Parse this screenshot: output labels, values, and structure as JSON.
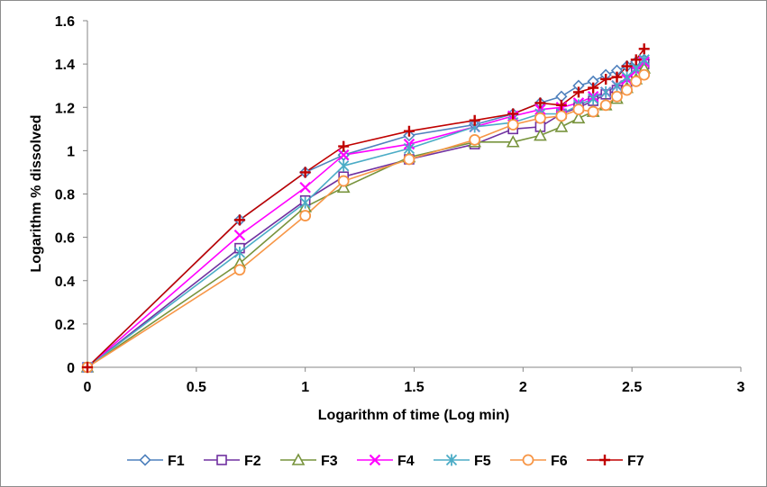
{
  "chart_data": {
    "type": "line",
    "title": "",
    "xlabel": "Logarithm of time (Log min)",
    "ylabel": "Logarithm % dissolved",
    "xlim": [
      0,
      3
    ],
    "ylim": [
      0,
      1.6
    ],
    "x_ticks": [
      0,
      0.5,
      1,
      1.5,
      2,
      2.5,
      3
    ],
    "x_tick_labels": [
      "0",
      "0.5",
      "1",
      "1.5",
      "2",
      "2.5",
      "3"
    ],
    "y_ticks": [
      0,
      0.2,
      0.4,
      0.6,
      0.8,
      1.0,
      1.2,
      1.4,
      1.6
    ],
    "y_tick_labels": [
      "0",
      "0.2",
      "0.4",
      "0.6",
      "0.8",
      "1",
      "1.2",
      "1.4",
      "1.6"
    ],
    "grid": false,
    "legend_position": "bottom",
    "x": [
      0,
      0.699,
      1.0,
      1.176,
      1.477,
      1.778,
      1.954,
      2.079,
      2.176,
      2.255,
      2.322,
      2.38,
      2.431,
      2.477,
      2.519,
      2.556
    ],
    "series": [
      {
        "name": "F1",
        "marker": "diamond",
        "color": "#4f81bd",
        "values": [
          0,
          0.68,
          0.9,
          0.98,
          1.07,
          1.12,
          1.17,
          1.22,
          1.25,
          1.3,
          1.32,
          1.35,
          1.37,
          1.39,
          1.41,
          1.42
        ]
      },
      {
        "name": "F2",
        "marker": "square",
        "color": "#7030a0",
        "values": [
          0,
          0.55,
          0.77,
          0.88,
          0.96,
          1.03,
          1.1,
          1.11,
          1.17,
          1.2,
          1.23,
          1.26,
          1.28,
          1.3,
          1.36,
          1.4
        ]
      },
      {
        "name": "F3",
        "marker": "triangle",
        "color": "#77933c",
        "values": [
          0,
          0.48,
          0.74,
          0.83,
          0.97,
          1.04,
          1.04,
          1.07,
          1.11,
          1.15,
          1.18,
          1.21,
          1.24,
          1.29,
          1.33,
          1.38
        ]
      },
      {
        "name": "F4",
        "marker": "x",
        "color": "#ff00ff",
        "values": [
          0,
          0.61,
          0.83,
          0.98,
          1.03,
          1.11,
          1.16,
          1.19,
          1.2,
          1.22,
          1.25,
          1.27,
          1.3,
          1.33,
          1.37,
          1.41
        ]
      },
      {
        "name": "F5",
        "marker": "asterisk",
        "color": "#4bacc6",
        "values": [
          0,
          0.53,
          0.76,
          0.93,
          1.01,
          1.11,
          1.13,
          1.17,
          1.17,
          1.21,
          1.24,
          1.27,
          1.3,
          1.34,
          1.38,
          1.42
        ]
      },
      {
        "name": "F6",
        "marker": "circle",
        "color": "#f79646",
        "values": [
          0,
          0.45,
          0.7,
          0.86,
          0.96,
          1.05,
          1.12,
          1.15,
          1.16,
          1.19,
          1.18,
          1.21,
          1.25,
          1.28,
          1.32,
          1.35
        ]
      },
      {
        "name": "F7",
        "marker": "plus",
        "color": "#c00000",
        "values": [
          0,
          0.68,
          0.9,
          1.02,
          1.09,
          1.14,
          1.17,
          1.22,
          1.21,
          1.27,
          1.29,
          1.33,
          1.34,
          1.39,
          1.42,
          1.47
        ]
      }
    ]
  }
}
